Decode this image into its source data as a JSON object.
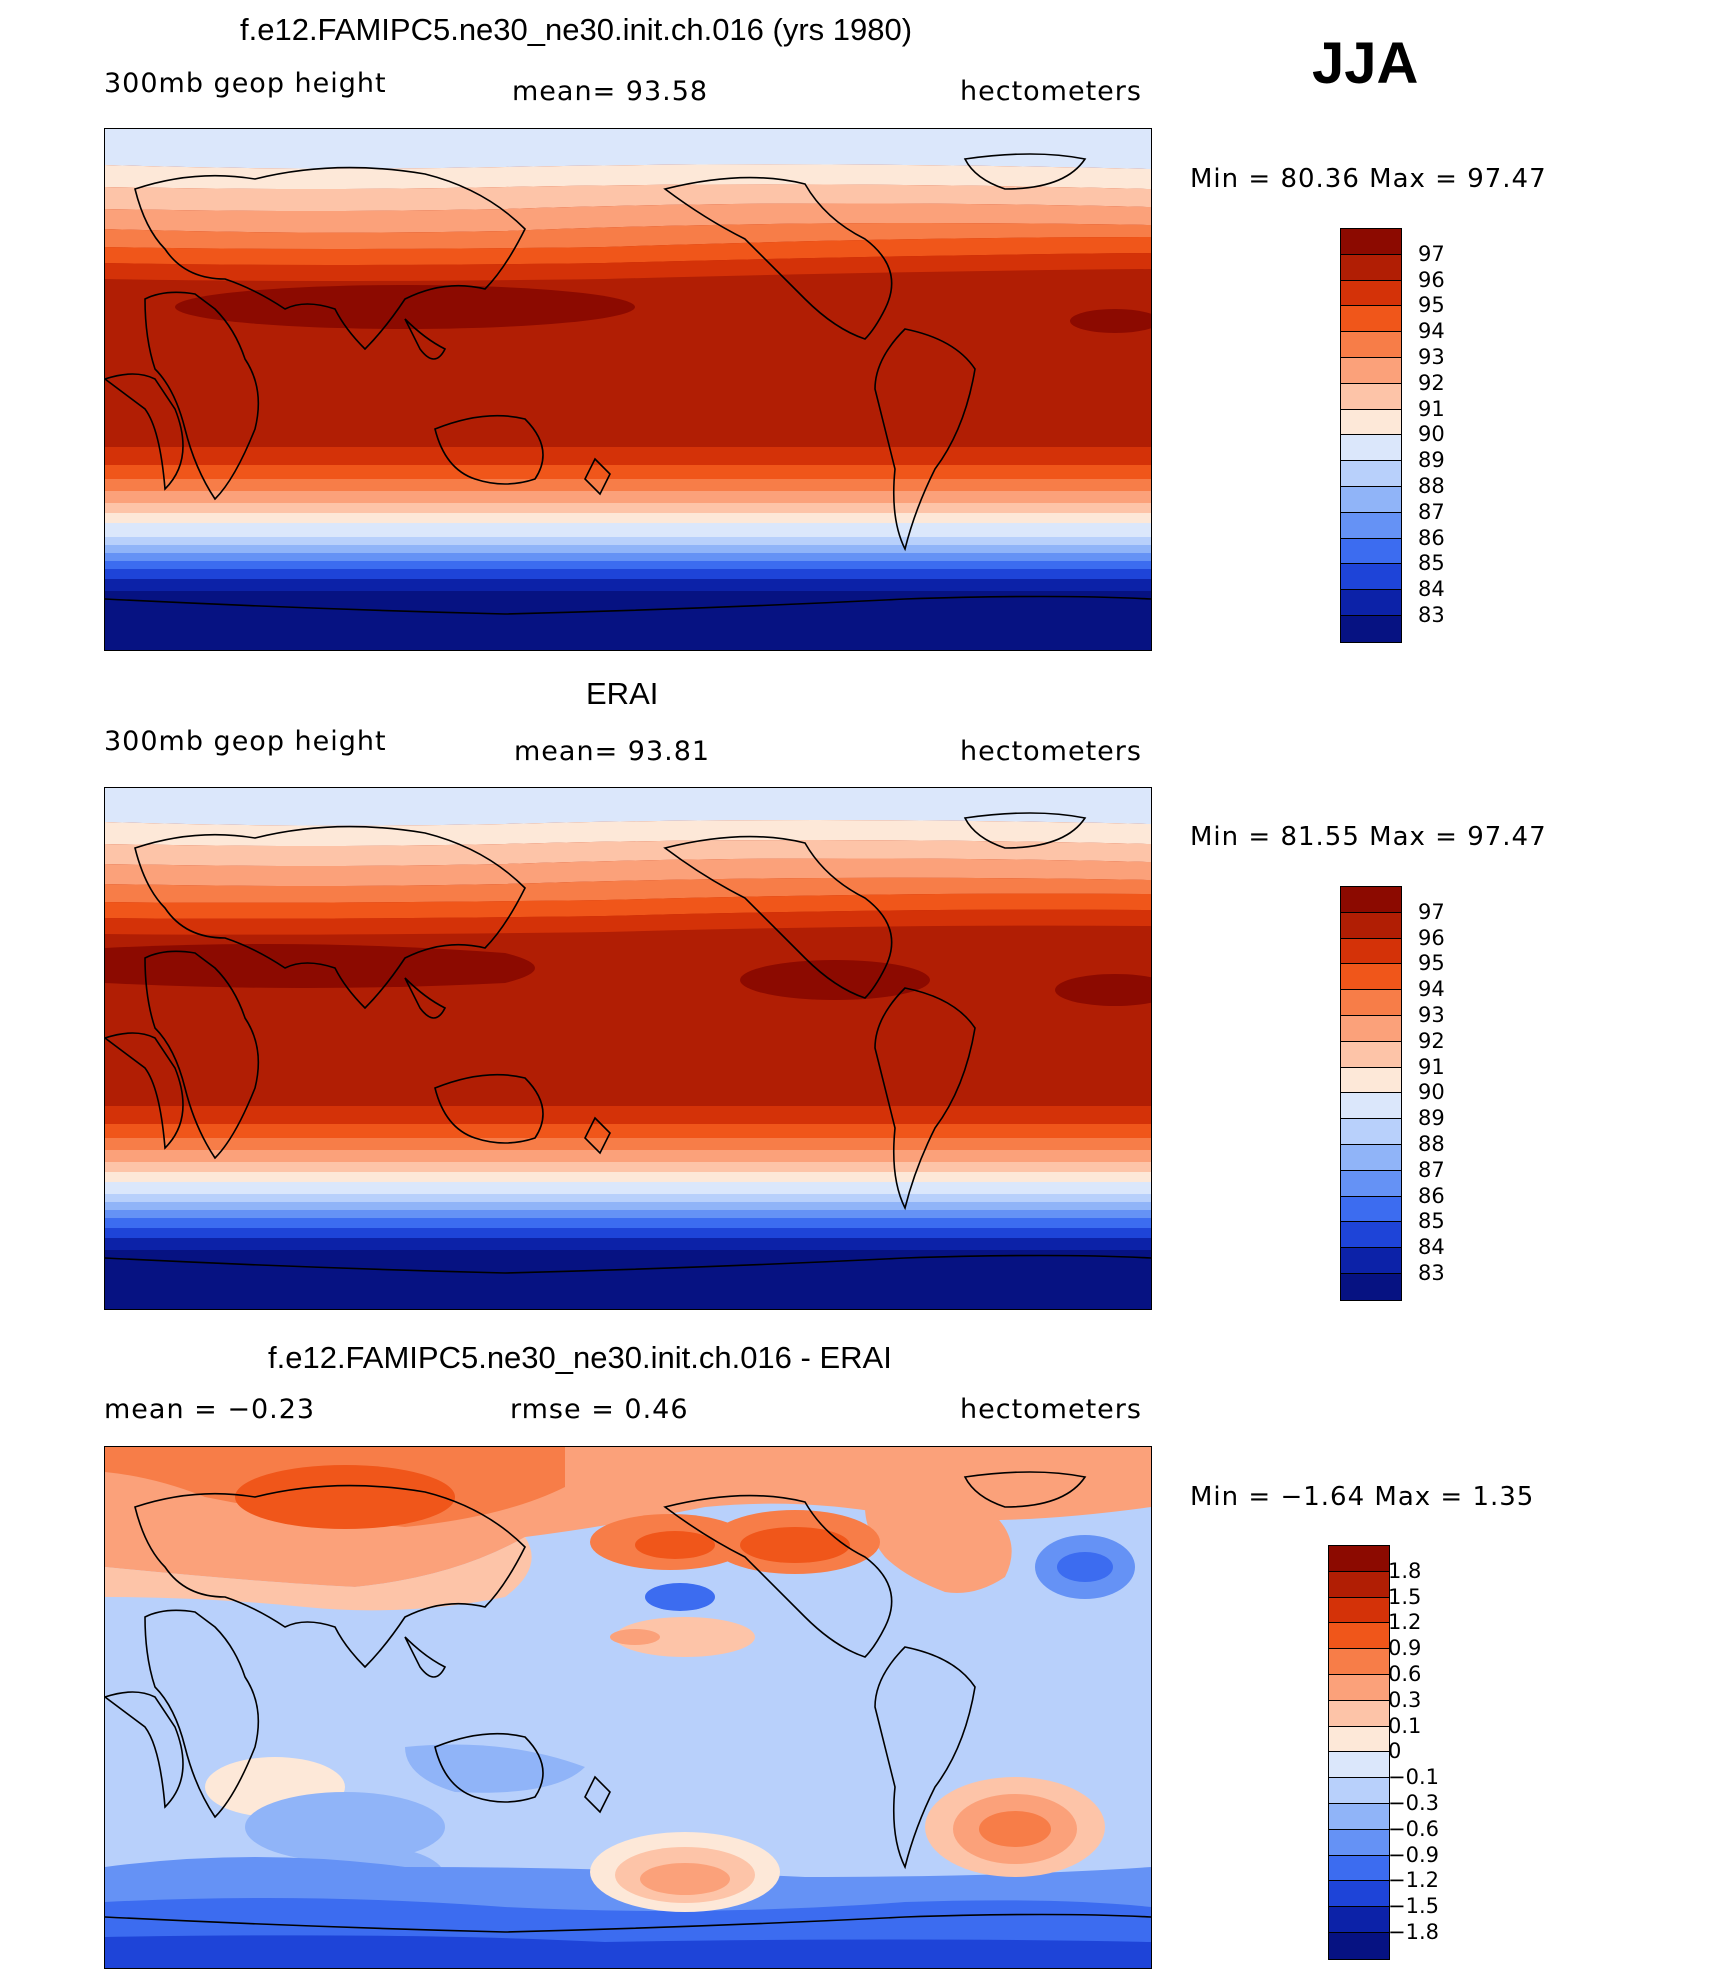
{
  "season": "JJA",
  "panels": [
    {
      "title": "f.e12.FAMIPC5.ne30_ne30.init.ch.016 (yrs 1980)",
      "left_label": "300mb  geop  height",
      "center_label": "mean=   93.58",
      "right_label": "hectometers",
      "minmax": "Min  =    80.36  Max  =    97.47",
      "levels": [
        "97",
        "96",
        "95",
        "94",
        "93",
        "92",
        "91",
        "90",
        "89",
        "88",
        "87",
        "86",
        "85",
        "84",
        "83"
      ],
      "colors": [
        "#8c0a00",
        "#b11e04",
        "#d43208",
        "#f0561a",
        "#f77d48",
        "#fba17a",
        "#fdc4a8",
        "#fde8d8",
        "#dbe7fb",
        "#b8d0fb",
        "#90b4f8",
        "#6592f5",
        "#3c6cf0",
        "#1e44d8",
        "#0c22a8",
        "#061282"
      ]
    },
    {
      "title": "ERAI",
      "left_label": "300mb  geop  height",
      "center_label": "mean=   93.81",
      "right_label": "hectometers",
      "minmax": "Min  =    81.55  Max  =    97.47",
      "levels": [
        "97",
        "96",
        "95",
        "94",
        "93",
        "92",
        "91",
        "90",
        "89",
        "88",
        "87",
        "86",
        "85",
        "84",
        "83"
      ],
      "colors": [
        "#8c0a00",
        "#b11e04",
        "#d43208",
        "#f0561a",
        "#f77d48",
        "#fba17a",
        "#fdc4a8",
        "#fde8d8",
        "#dbe7fb",
        "#b8d0fb",
        "#90b4f8",
        "#6592f5",
        "#3c6cf0",
        "#1e44d8",
        "#0c22a8",
        "#061282"
      ]
    },
    {
      "title": "f.e12.FAMIPC5.ne30_ne30.init.ch.016 - ERAI",
      "left_label": "mean  =    −0.23",
      "center_label": "rmse  =     0.46",
      "right_label": "hectometers",
      "minmax": "Min  =   −1.64  Max  =       1.35",
      "levels": [
        "1.8",
        "1.5",
        "1.2",
        "0.9",
        "0.6",
        "0.3",
        "0.1",
        "0",
        "−0.1",
        "−0.3",
        "−0.6",
        "−0.9",
        "−1.2",
        "−1.5",
        "−1.8"
      ],
      "colors": [
        "#8c0a00",
        "#b11e04",
        "#d43208",
        "#f0561a",
        "#f77d48",
        "#fba17a",
        "#fdc4a8",
        "#fde8d8",
        "#dbe7fb",
        "#b8d0fb",
        "#90b4f8",
        "#6592f5",
        "#3c6cf0",
        "#1e44d8",
        "#0c22a8",
        "#061282"
      ]
    }
  ]
}
